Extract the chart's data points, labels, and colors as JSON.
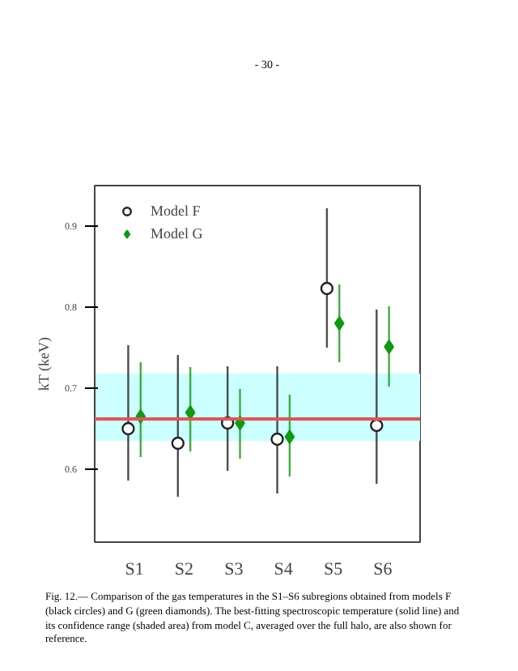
{
  "chart_data": {
    "type": "scatter",
    "categories": [
      "S1",
      "S2",
      "S3",
      "S4",
      "S5",
      "S6"
    ],
    "ylabel": "kT (keV)",
    "ylim": [
      0.51,
      0.95
    ],
    "yticks": [
      0.6,
      0.7,
      0.8,
      0.9
    ],
    "series": [
      {
        "name": "Model F",
        "color": "#222222",
        "marker": "circle",
        "values": [
          0.65,
          0.632,
          0.657,
          0.637,
          0.823,
          0.654
        ],
        "errors": [
          [
            0.586,
            0.753
          ],
          [
            0.566,
            0.741
          ],
          [
            0.598,
            0.727
          ],
          [
            0.57,
            0.727
          ],
          [
            0.75,
            0.922
          ],
          [
            0.582,
            0.797
          ]
        ]
      },
      {
        "name": "Model G",
        "color": "#119911",
        "marker": "diamond",
        "values": [
          0.665,
          0.67,
          0.657,
          0.64,
          0.78,
          0.751
        ],
        "errors": [
          [
            0.615,
            0.732
          ],
          [
            0.622,
            0.726
          ],
          [
            0.613,
            0.699
          ],
          [
            0.591,
            0.692
          ],
          [
            0.732,
            0.828
          ],
          [
            0.702,
            0.801
          ]
        ]
      }
    ],
    "ref_lines": [
      {
        "axis": "y",
        "value": 0.662,
        "color": "#e05555"
      }
    ],
    "bands": [
      {
        "axis": "y",
        "from": 0.635,
        "to": 0.718,
        "color": "#ccffff"
      }
    ],
    "legend": "top left",
    "grid": false,
    "annotations": [
      "- 30 -",
      "Fig. 12.— Comparison of the gas temperatures in the S1–S6 subregions obtained from models F (black circles) and G (green diamonds). The best-fitting spectroscopic temperature (solid line) and its confidence range (shaded area) from model C, averaged over the full halo, are also shown for reference."
    ]
  }
}
